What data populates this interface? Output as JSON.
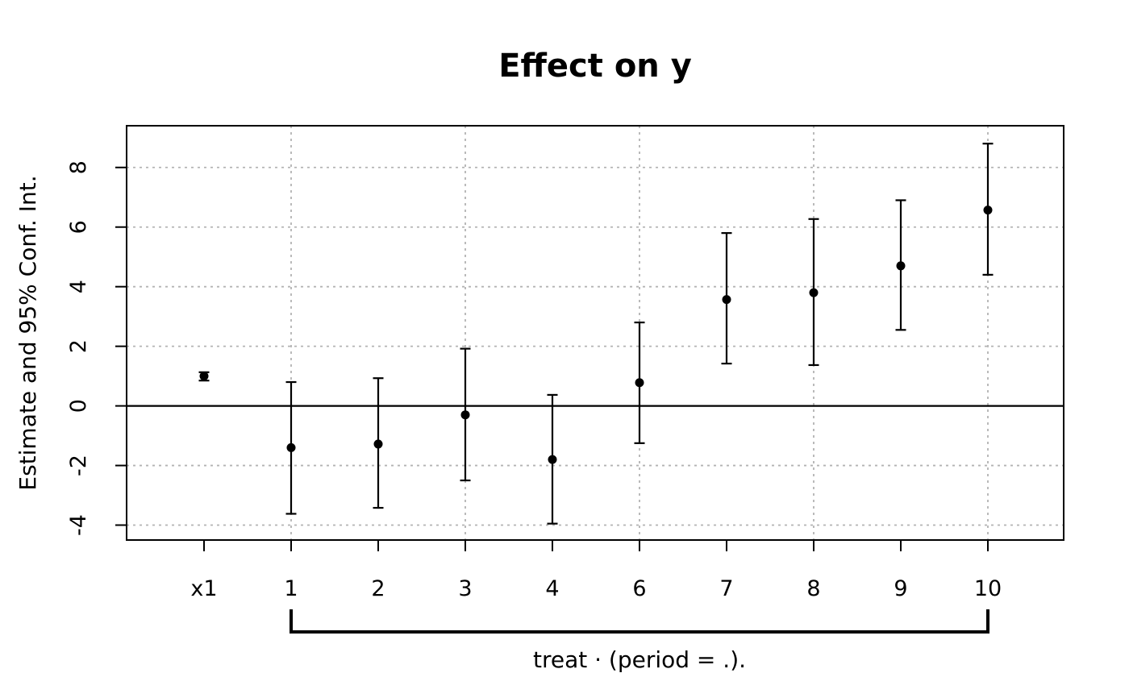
{
  "chart_data": {
    "type": "scatter",
    "subtype": "coefficient-plot-with-error-bars",
    "title": "Effect on y",
    "ylabel": "Estimate and 95% Conf. Int.",
    "categories": [
      "x1",
      "1",
      "2",
      "3",
      "4",
      "6",
      "7",
      "8",
      "9",
      "10"
    ],
    "points": [
      {
        "label": "x1",
        "estimate": 1.0,
        "ci_low": 0.85,
        "ci_high": 1.13
      },
      {
        "label": "1",
        "estimate": -1.4,
        "ci_low": -3.62,
        "ci_high": 0.8
      },
      {
        "label": "2",
        "estimate": -1.28,
        "ci_low": -3.42,
        "ci_high": 0.93
      },
      {
        "label": "3",
        "estimate": -0.3,
        "ci_low": -2.5,
        "ci_high": 1.92
      },
      {
        "label": "4",
        "estimate": -1.8,
        "ci_low": -3.95,
        "ci_high": 0.37
      },
      {
        "label": "6",
        "estimate": 0.78,
        "ci_low": -1.25,
        "ci_high": 2.8
      },
      {
        "label": "7",
        "estimate": 3.57,
        "ci_low": 1.42,
        "ci_high": 5.8
      },
      {
        "label": "8",
        "estimate": 3.8,
        "ci_low": 1.37,
        "ci_high": 6.27
      },
      {
        "label": "9",
        "estimate": 4.7,
        "ci_low": 2.55,
        "ci_high": 6.9
      },
      {
        "label": "10",
        "estimate": 6.57,
        "ci_low": 4.4,
        "ci_high": 8.8
      }
    ],
    "y_ticks": [
      -4,
      -2,
      0,
      2,
      4,
      6,
      8
    ],
    "ylim": [
      -4.5,
      9.4
    ],
    "zero_line": 0,
    "grid": "dotted",
    "grid_x_categories": [
      "1",
      "3",
      "6",
      "8",
      "10"
    ],
    "bracket": {
      "from": "1",
      "to": "10",
      "label": "treat · (period = .)."
    },
    "legend": "none",
    "colors": {
      "point": "#000000",
      "line": "#000000",
      "grid": "#b3b3b3",
      "background": "#ffffff"
    }
  }
}
